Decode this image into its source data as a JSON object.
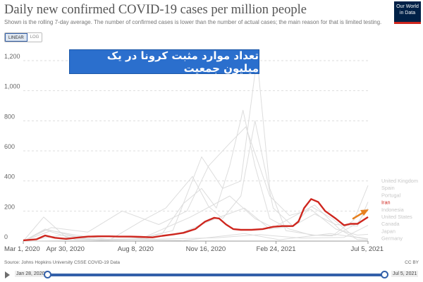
{
  "header": {
    "title": "Daily new confirmed COVID-19 cases per million people",
    "subtitle": "Shown is the rolling 7-day average. The number of confirmed cases is lower than the number of actual cases; the main reason for that is limited testing."
  },
  "logo": {
    "line1": "Our World",
    "line2": "in Data"
  },
  "scale_toggle": {
    "linear": "LINEAR",
    "log": "LOG",
    "selected": "LINEAR"
  },
  "overlay_text": "تعداد موارد مثبت کرونا در یک میلیون جمعیت",
  "footer": {
    "source": "Source: Johns Hopkins University CSSE COVID-19 Data",
    "license": "CC BY"
  },
  "timeline": {
    "start": "Jan 28, 2020",
    "end": "Jul 5, 2021",
    "play_icon": "play-icon"
  },
  "colors": {
    "highlight": "#ce261e",
    "others": "#dddddd",
    "arrow": "#e6801f",
    "slider": "#3360a9"
  },
  "chart_data": {
    "type": "line",
    "x_ticks": [
      "Mar 1, 2020",
      "Apr 30, 2020",
      "Aug 8, 2020",
      "Nov 16, 2020",
      "Feb 24, 2021",
      "Jul 5, 2021"
    ],
    "y_ticks": [
      "0",
      "200",
      "400",
      "600",
      "800",
      "1,000",
      "1,200"
    ],
    "xlim": [
      "2020-03-01",
      "2021-07-05"
    ],
    "ylim": [
      0,
      1200
    ],
    "grid": "horizontal dashed",
    "legend_position": "right",
    "legend": [
      "United Kingdom",
      "Spain",
      "Portugal",
      "Iran",
      "Indonesia",
      "United States",
      "Canada",
      "Japan",
      "Germany"
    ],
    "highlighted_series": "Iran",
    "series": [
      {
        "name": "Iran",
        "points": [
          [
            "2020-03-01",
            5
          ],
          [
            "2020-03-20",
            12
          ],
          [
            "2020-04-01",
            37
          ],
          [
            "2020-04-15",
            22
          ],
          [
            "2020-05-01",
            15
          ],
          [
            "2020-05-15",
            22
          ],
          [
            "2020-06-01",
            30
          ],
          [
            "2020-06-15",
            32
          ],
          [
            "2020-07-01",
            32
          ],
          [
            "2020-07-15",
            30
          ],
          [
            "2020-08-01",
            30
          ],
          [
            "2020-08-15",
            28
          ],
          [
            "2020-09-01",
            25
          ],
          [
            "2020-09-15",
            35
          ],
          [
            "2020-10-01",
            45
          ],
          [
            "2020-10-15",
            55
          ],
          [
            "2020-11-01",
            80
          ],
          [
            "2020-11-15",
            130
          ],
          [
            "2020-11-28",
            155
          ],
          [
            "2020-12-05",
            150
          ],
          [
            "2020-12-15",
            110
          ],
          [
            "2020-12-25",
            80
          ],
          [
            "2021-01-05",
            75
          ],
          [
            "2021-01-20",
            75
          ],
          [
            "2021-02-05",
            80
          ],
          [
            "2021-02-20",
            95
          ],
          [
            "2021-03-05",
            100
          ],
          [
            "2021-03-20",
            100
          ],
          [
            "2021-03-28",
            130
          ],
          [
            "2021-04-05",
            220
          ],
          [
            "2021-04-15",
            280
          ],
          [
            "2021-04-25",
            260
          ],
          [
            "2021-05-05",
            200
          ],
          [
            "2021-05-20",
            150
          ],
          [
            "2021-06-01",
            105
          ],
          [
            "2021-06-10",
            115
          ],
          [
            "2021-06-20",
            115
          ],
          [
            "2021-07-05",
            160
          ]
        ]
      },
      {
        "name": "United Kingdom",
        "points": [
          [
            "2020-03-01",
            0
          ],
          [
            "2020-04-10",
            70
          ],
          [
            "2020-05-15",
            40
          ],
          [
            "2020-07-01",
            10
          ],
          [
            "2020-08-15",
            15
          ],
          [
            "2020-09-15",
            50
          ],
          [
            "2020-10-15",
            250
          ],
          [
            "2020-11-10",
            350
          ],
          [
            "2020-12-01",
            220
          ],
          [
            "2020-12-20",
            500
          ],
          [
            "2021-01-08",
            870
          ],
          [
            "2021-01-25",
            500
          ],
          [
            "2021-02-15",
            150
          ],
          [
            "2021-03-15",
            80
          ],
          [
            "2021-04-15",
            40
          ],
          [
            "2021-05-15",
            35
          ],
          [
            "2021-06-15",
            140
          ],
          [
            "2021-07-05",
            370
          ]
        ]
      },
      {
        "name": "Spain",
        "points": [
          [
            "2020-03-01",
            0
          ],
          [
            "2020-03-30",
            160
          ],
          [
            "2020-05-01",
            25
          ],
          [
            "2020-07-01",
            5
          ],
          [
            "2020-08-15",
            130
          ],
          [
            "2020-09-20",
            220
          ],
          [
            "2020-10-28",
            430
          ],
          [
            "2020-11-20",
            230
          ],
          [
            "2020-12-10",
            150
          ],
          [
            "2021-01-05",
            300
          ],
          [
            "2021-01-25",
            800
          ],
          [
            "2021-02-20",
            220
          ],
          [
            "2021-03-20",
            100
          ],
          [
            "2021-04-20",
            180
          ],
          [
            "2021-05-20",
            110
          ],
          [
            "2021-06-20",
            100
          ],
          [
            "2021-07-05",
            260
          ]
        ]
      },
      {
        "name": "Portugal",
        "points": [
          [
            "2020-03-01",
            0
          ],
          [
            "2020-04-01",
            80
          ],
          [
            "2020-05-15",
            30
          ],
          [
            "2020-07-01",
            35
          ],
          [
            "2020-08-15",
            20
          ],
          [
            "2020-09-30",
            70
          ],
          [
            "2020-11-10",
            560
          ],
          [
            "2020-12-10",
            350
          ],
          [
            "2021-01-05",
            400
          ],
          [
            "2021-01-28",
            1250
          ],
          [
            "2021-02-15",
            350
          ],
          [
            "2021-03-10",
            70
          ],
          [
            "2021-04-20",
            40
          ],
          [
            "2021-05-20",
            40
          ],
          [
            "2021-06-20",
            120
          ],
          [
            "2021-07-05",
            220
          ]
        ]
      },
      {
        "name": "United States",
        "points": [
          [
            "2020-03-01",
            0
          ],
          [
            "2020-04-10",
            90
          ],
          [
            "2020-06-01",
            60
          ],
          [
            "2020-07-20",
            200
          ],
          [
            "2020-09-10",
            110
          ],
          [
            "2020-10-20",
            200
          ],
          [
            "2020-11-20",
            500
          ],
          [
            "2020-12-20",
            650
          ],
          [
            "2021-01-12",
            760
          ],
          [
            "2021-02-15",
            300
          ],
          [
            "2021-03-15",
            170
          ],
          [
            "2021-04-15",
            210
          ],
          [
            "2021-05-20",
            80
          ],
          [
            "2021-06-20",
            40
          ],
          [
            "2021-07-05",
            45
          ]
        ]
      },
      {
        "name": "Canada",
        "points": [
          [
            "2020-03-01",
            0
          ],
          [
            "2020-04-25",
            40
          ],
          [
            "2020-06-15",
            10
          ],
          [
            "2020-08-15",
            10
          ],
          [
            "2020-10-15",
            60
          ],
          [
            "2020-11-30",
            150
          ],
          [
            "2021-01-10",
            220
          ],
          [
            "2021-02-15",
            80
          ],
          [
            "2021-03-20",
            100
          ],
          [
            "2021-04-15",
            230
          ],
          [
            "2021-05-15",
            150
          ],
          [
            "2021-06-15",
            30
          ],
          [
            "2021-07-05",
            15
          ]
        ]
      },
      {
        "name": "Germany",
        "points": [
          [
            "2020-03-01",
            0
          ],
          [
            "2020-04-01",
            75
          ],
          [
            "2020-05-15",
            10
          ],
          [
            "2020-08-15",
            15
          ],
          [
            "2020-10-25",
            160
          ],
          [
            "2020-12-20",
            300
          ],
          [
            "2021-01-25",
            150
          ],
          [
            "2021-02-20",
            90
          ],
          [
            "2021-04-20",
            240
          ],
          [
            "2021-05-25",
            80
          ],
          [
            "2021-06-20",
            10
          ],
          [
            "2021-07-05",
            8
          ]
        ]
      },
      {
        "name": "Indonesia",
        "points": [
          [
            "2020-03-01",
            0
          ],
          [
            "2020-06-01",
            3
          ],
          [
            "2020-09-01",
            12
          ],
          [
            "2020-12-01",
            22
          ],
          [
            "2021-02-01",
            43
          ],
          [
            "2021-04-01",
            20
          ],
          [
            "2021-06-01",
            25
          ],
          [
            "2021-07-05",
            105
          ]
        ]
      },
      {
        "name": "Japan",
        "points": [
          [
            "2020-03-01",
            0
          ],
          [
            "2020-04-15",
            4
          ],
          [
            "2020-08-05",
            10
          ],
          [
            "2020-10-15",
            4
          ],
          [
            "2021-01-10",
            50
          ],
          [
            "2021-03-01",
            9
          ],
          [
            "2021-05-12",
            50
          ],
          [
            "2021-07-05",
            13
          ]
        ]
      }
    ]
  }
}
